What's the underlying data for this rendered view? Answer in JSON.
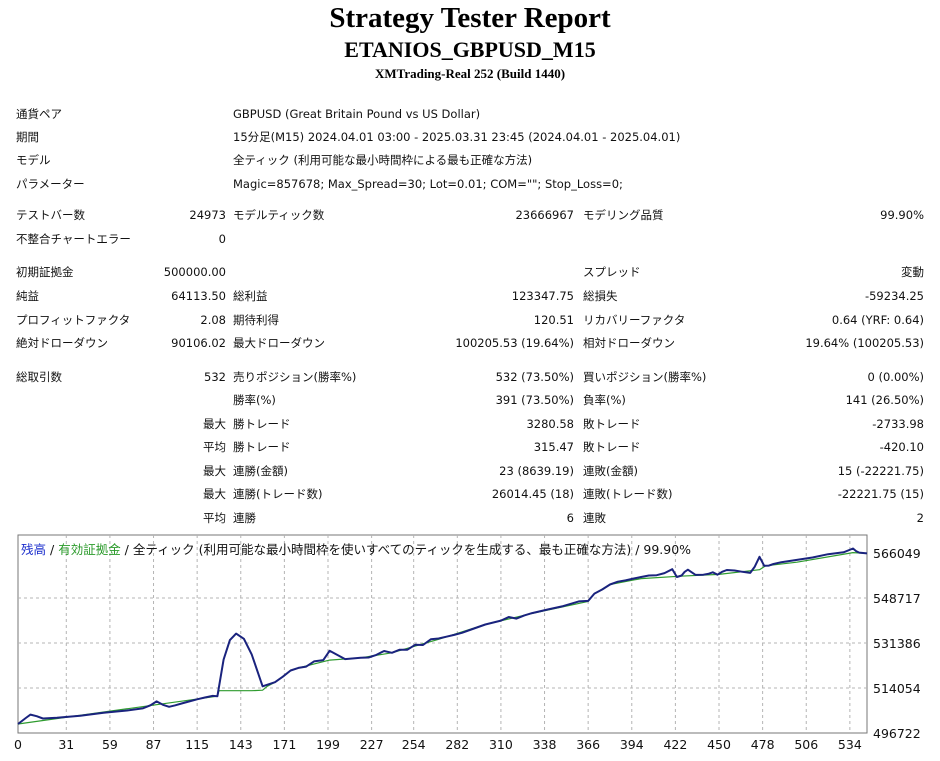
{
  "header": {
    "title": "Strategy Tester Report",
    "subtitle": "ETANIOS_GBPUSD_M15",
    "server": "XMTrading-Real 252 (Build 1440)"
  },
  "info": {
    "pair_label": "通貨ペア",
    "pair_value": "GBPUSD (Great Britain Pound vs US Dollar)",
    "period_label": "期間",
    "period_value": "15分足(M15) 2024.04.01 03:00 - 2025.03.31 23:45 (2024.04.01 - 2025.04.01)",
    "model_label": "モデル",
    "model_value": "全ティック (利用可能な最小時間枠による最も正確な方法)",
    "params_label": "パラメーター",
    "params_value": "Magic=857678; Max_Spread=30; Lot=0.01; COM=\"\"; Stop_Loss=0;"
  },
  "stats": {
    "bars_label": "テストバー数",
    "bars_value": "24973",
    "ticks_label": "モデルティック数",
    "ticks_value": "23666967",
    "quality_label": "モデリング品質",
    "quality_value": "99.90%",
    "mismatch_label": "不整合チャートエラー",
    "mismatch_value": "0",
    "deposit_label": "初期証拠金",
    "deposit_value": "500000.00",
    "spread_label": "スプレッド",
    "spread_value": "変動",
    "net_label": "純益",
    "net_value": "64113.50",
    "gross_profit_label": "総利益",
    "gross_profit_value": "123347.75",
    "gross_loss_label": "総損失",
    "gross_loss_value": "-59234.25",
    "pf_label": "プロフィットファクタ",
    "pf_value": "2.08",
    "expected_label": "期待利得",
    "expected_value": "120.51",
    "recovery_label": "リカバリーファクタ",
    "recovery_value": "0.64 (YRF: 0.64)",
    "abs_dd_label": "絶対ドローダウン",
    "abs_dd_value": "90106.02",
    "max_dd_label": "最大ドローダウン",
    "max_dd_value": "100205.53 (19.64%)",
    "rel_dd_label": "相対ドローダウン",
    "rel_dd_value": "19.64% (100205.53)",
    "trades_label": "総取引数",
    "trades_value": "532",
    "short_label": "売りポジション(勝率%)",
    "short_value": "532 (73.50%)",
    "long_label": "買いポジション(勝率%)",
    "long_value": "0 (0.00%)",
    "win_pct_label": "勝率(%)",
    "win_pct_value": "391 (73.50%)",
    "loss_pct_label": "負率(%)",
    "loss_pct_value": "141 (26.50%)",
    "max_label": "最大",
    "avg_label": "平均",
    "win_trade_label": "勝トレード",
    "loss_trade_label": "敗トレード",
    "max_win_value": "3280.58",
    "max_loss_value": "-2733.98",
    "avg_win_value": "315.47",
    "avg_loss_value": "-420.10",
    "cons_win_money_label": "連勝(金額)",
    "cons_win_money_value": "23 (8639.19)",
    "cons_loss_money_label": "連敗(金額)",
    "cons_loss_money_value": "15 (-22221.75)",
    "cons_win_count_label": "連勝(トレード数)",
    "cons_win_count_value": "26014.45 (18)",
    "cons_loss_count_label": "連敗(トレード数)",
    "cons_loss_count_value": "-22221.75 (15)",
    "avg_cons_win_label": "連勝",
    "avg_cons_win_value": "6",
    "avg_cons_loss_label": "連敗",
    "avg_cons_loss_value": "2"
  },
  "chart_data": {
    "type": "line",
    "legend": {
      "balance": "残高",
      "sep1": " / ",
      "equity": "有効証拠金",
      "sep2": " / ",
      "rest": "全ティック (利用可能な最小時間枠を使いすべてのティックを生成する、最も正確な方法) / 99.90%"
    },
    "colors": {
      "balance": "#1a237e",
      "equity": "#2e9b2e",
      "grid": "#b4b4b4"
    },
    "xlim": [
      0,
      545
    ],
    "ylim": [
      496722,
      566049
    ],
    "x_ticks": [
      "0",
      "31",
      "59",
      "87",
      "115",
      "143",
      "171",
      "199",
      "227",
      "254",
      "282",
      "310",
      "338",
      "366",
      "394",
      "422",
      "450",
      "478",
      "506",
      "534"
    ],
    "y_ticks": [
      "566049",
      "548717",
      "531386",
      "514054",
      "496722"
    ],
    "series": [
      {
        "key": "balance",
        "x": [
          0,
          5,
          8,
          12,
          16,
          25,
          40,
          55,
          70,
          80,
          85,
          89,
          93,
          97,
          101,
          105,
          110,
          115,
          120,
          125,
          128,
          132,
          136,
          140,
          145,
          150,
          157,
          165,
          170,
          175,
          180,
          185,
          190,
          196,
          200,
          210,
          220,
          225,
          230,
          235,
          240,
          245,
          250,
          255,
          260,
          265,
          270,
          275,
          280,
          285,
          290,
          300,
          310,
          315,
          320,
          325,
          330,
          340,
          350,
          360,
          366,
          370,
          375,
          380,
          385,
          390,
          395,
          400,
          405,
          410,
          415,
          420,
          423,
          426,
          428,
          430,
          435,
          440,
          443,
          446,
          449,
          452,
          455,
          460,
          465,
          470,
          473,
          476,
          479,
          482,
          485,
          490,
          500,
          510,
          520,
          530,
          536,
          538,
          540,
          545
        ],
        "y": [
          500200,
          502500,
          503800,
          503200,
          502300,
          502600,
          503400,
          504500,
          505400,
          506200,
          507400,
          508900,
          507600,
          506800,
          507400,
          508100,
          508900,
          509700,
          510400,
          511000,
          510900,
          525000,
          532500,
          535000,
          533000,
          527000,
          514700,
          516300,
          518400,
          520800,
          521800,
          522300,
          524300,
          524800,
          528400,
          525200,
          525700,
          525800,
          526800,
          528300,
          527600,
          528800,
          528800,
          530700,
          530600,
          532800,
          533100,
          533800,
          534500,
          535300,
          536400,
          538500,
          540000,
          541400,
          540800,
          542000,
          542900,
          544300,
          545600,
          547400,
          547600,
          550400,
          552000,
          553900,
          555000,
          555500,
          556200,
          556800,
          557400,
          557500,
          558300,
          559800,
          556800,
          557400,
          558800,
          559600,
          557600,
          557700,
          558000,
          558600,
          557700,
          558800,
          559500,
          559300,
          558800,
          558400,
          560800,
          564600,
          561100,
          561200,
          561800,
          562500,
          563400,
          564300,
          565600,
          566300,
          567800,
          566800,
          566200,
          565900
        ]
      },
      {
        "key": "equity",
        "x": [
          0,
          128,
          129,
          136,
          150,
          157,
          160,
          165,
          170,
          175,
          180,
          200,
          220,
          240,
          270,
          300,
          330,
          366,
          370,
          380,
          400,
          425,
          450,
          476,
          480,
          500,
          536,
          545
        ],
        "y": [
          500200,
          510900,
          513000,
          513000,
          513000,
          513200,
          514700,
          516300,
          518400,
          520800,
          521800,
          524800,
          525700,
          527600,
          532800,
          538500,
          542800,
          547400,
          550400,
          553900,
          556200,
          557100,
          557800,
          559600,
          561100,
          562500,
          566200,
          565900
        ]
      }
    ]
  }
}
